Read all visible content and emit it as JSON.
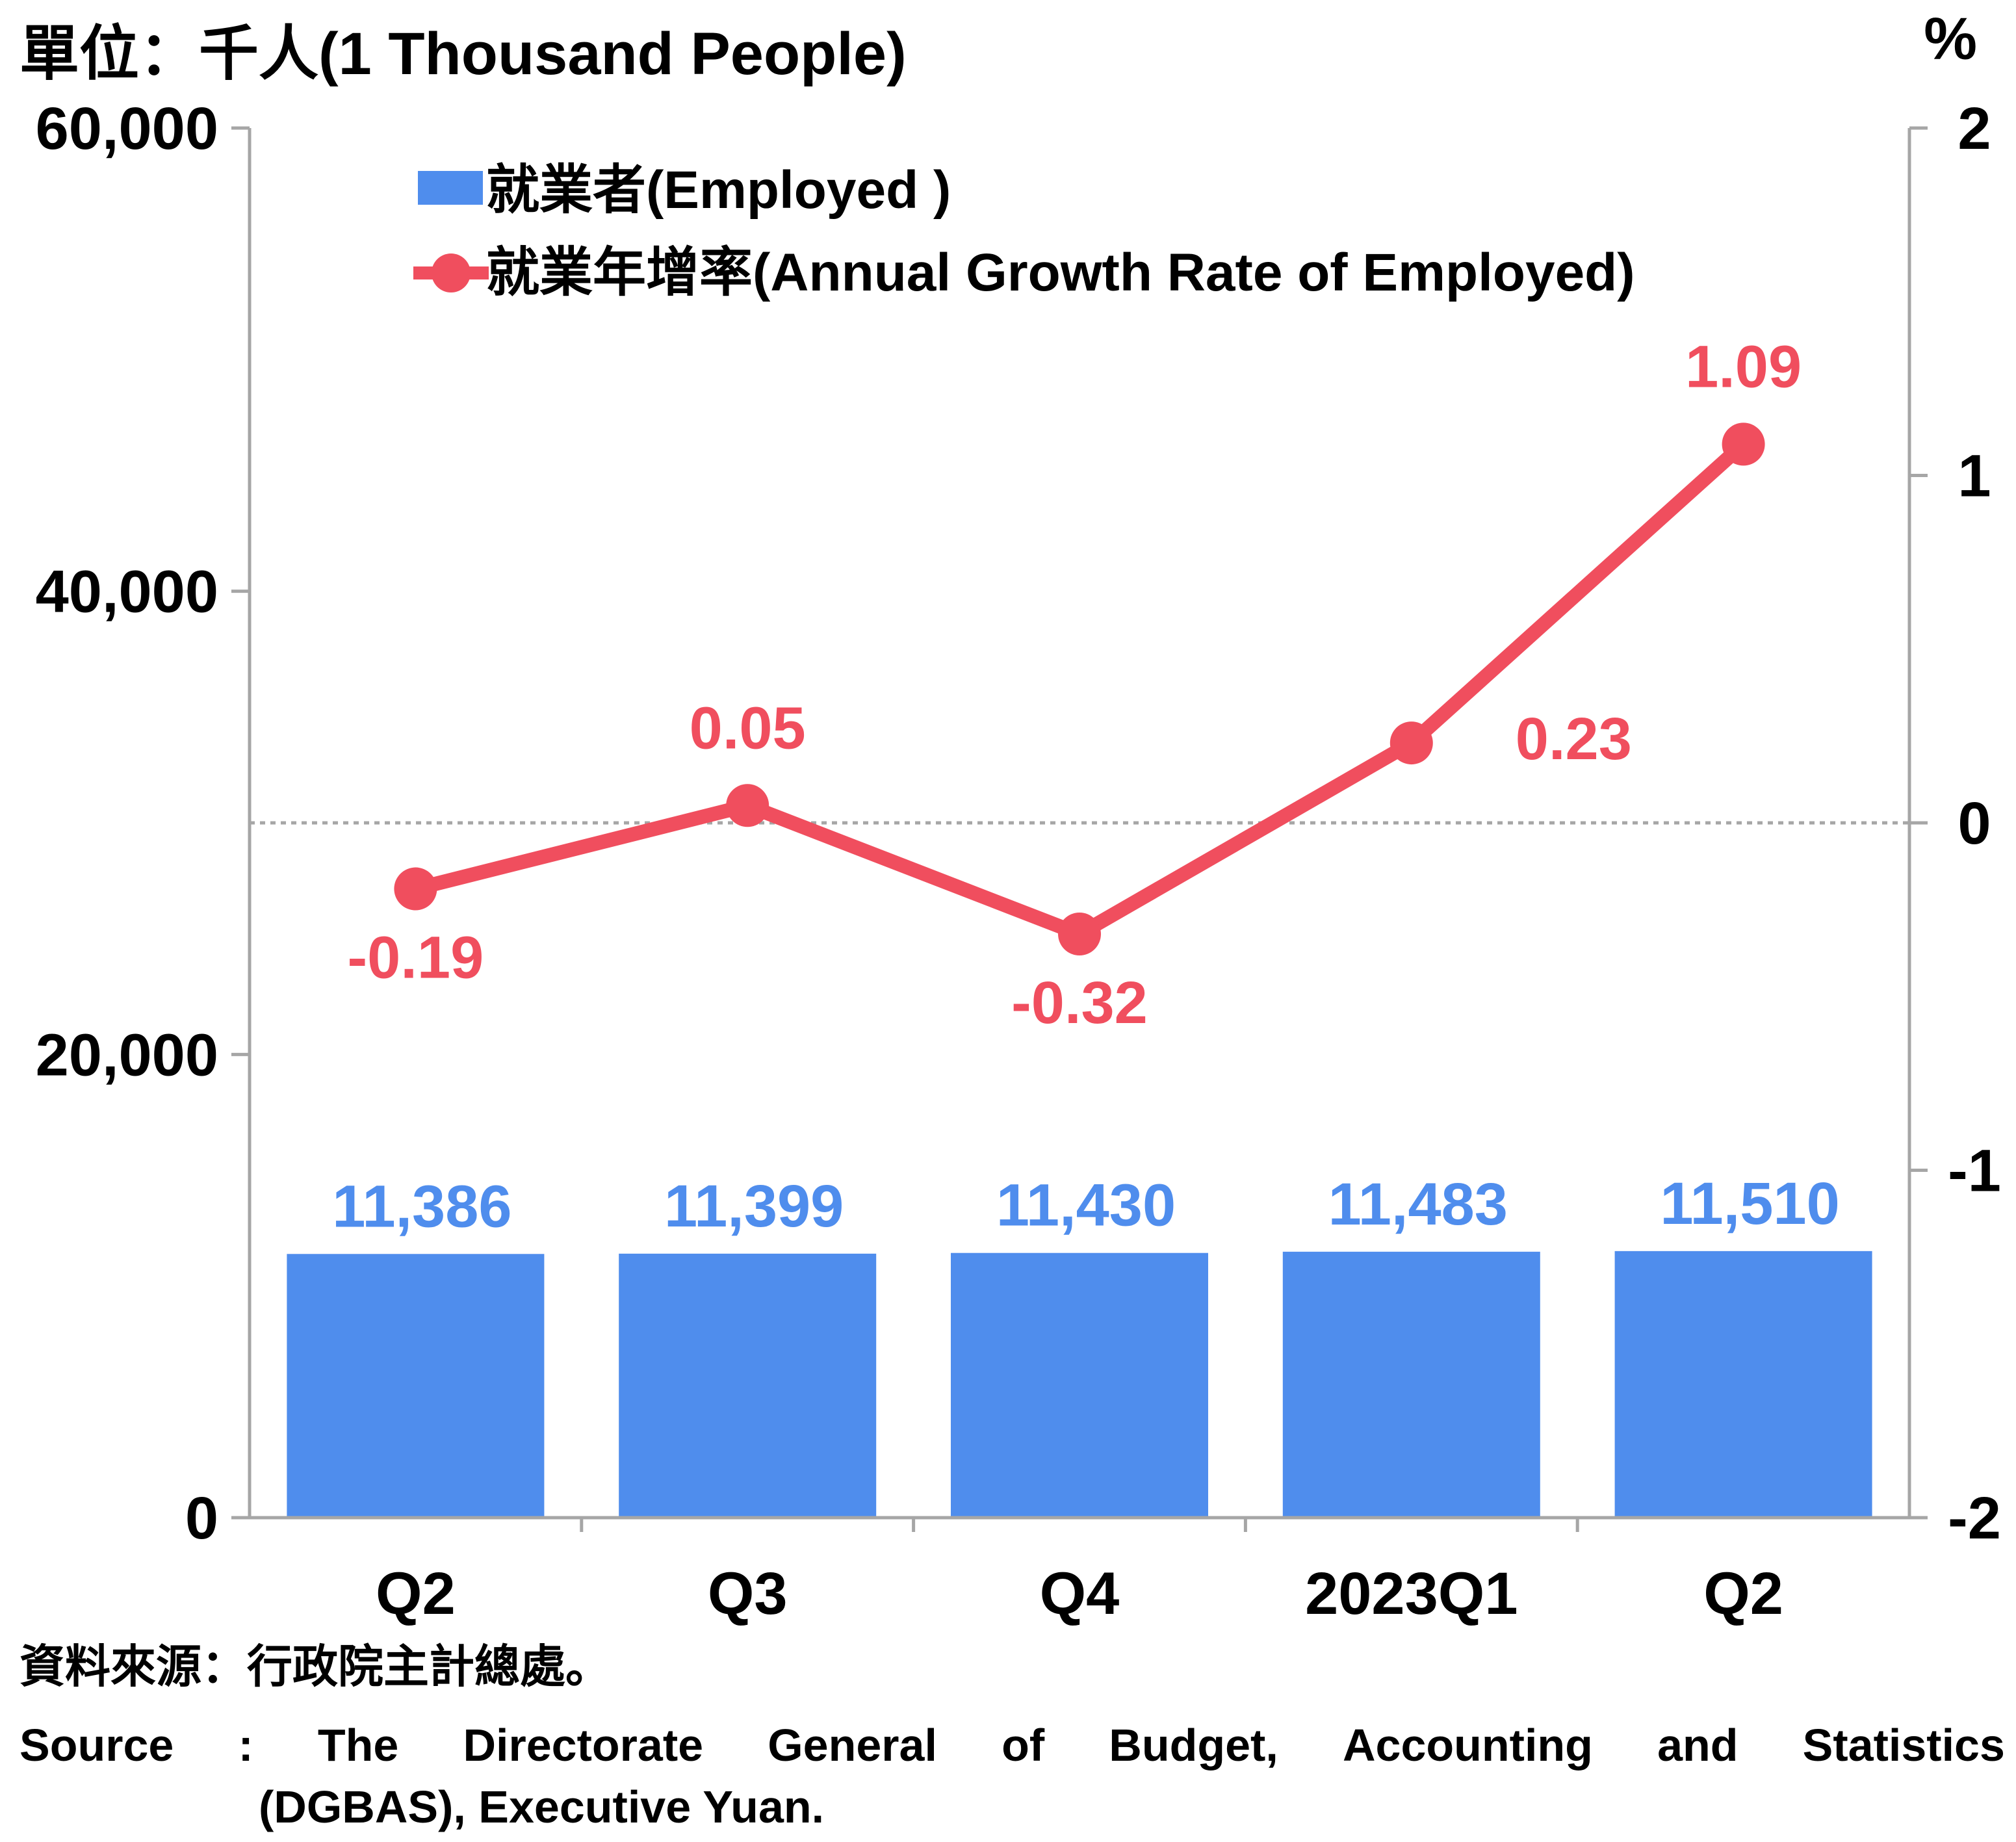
{
  "unit_label": "單位：千人(1 Thousand People)",
  "right_unit_label": "%",
  "source": {
    "zh": "資料來源：行政院主計總處。",
    "en_line1": [
      "Source",
      ":",
      "The",
      "Directorate",
      "General",
      "of",
      "Budget,",
      "Accounting",
      "and",
      "Statistics"
    ],
    "en_line2": "(DGBAS), Executive Yuan."
  },
  "colors": {
    "bar": "#4f8ded",
    "line": "#f04e5e",
    "axis": "#a6a6a6",
    "zero_line": "#a6a6a6"
  },
  "chart_data": {
    "type": "bar",
    "categories": [
      "Q2",
      "Q3",
      "Q4",
      "2023Q1",
      "Q2"
    ],
    "series": [
      {
        "name": "就業者(Employed )",
        "type": "bar",
        "axis": "left",
        "values": [
          11386,
          11399,
          11430,
          11483,
          11510
        ],
        "labels": [
          "11,386",
          "11,399",
          "11,430",
          "11,483",
          "11,510"
        ]
      },
      {
        "name": "就業年增率(Annual Growth Rate of Employed)",
        "type": "line",
        "axis": "right",
        "values": [
          -0.19,
          0.05,
          -0.32,
          0.23,
          1.09
        ],
        "labels": [
          "-0.19",
          "0.05",
          "-0.32",
          "0.23",
          "1.09"
        ]
      }
    ],
    "left_axis": {
      "min": 0,
      "max": 60000,
      "ticks": [
        "0",
        "20,000",
        "40,000",
        "60,000"
      ],
      "tick_values": [
        0,
        20000,
        40000,
        60000
      ]
    },
    "right_axis": {
      "min": -2,
      "max": 2,
      "ticks": [
        "-2",
        "-1",
        "0",
        "1",
        "2"
      ],
      "tick_values": [
        -2,
        -1,
        0,
        1,
        2
      ]
    },
    "legend_position": "top-left",
    "grid": false,
    "zero_reference_line": true
  }
}
